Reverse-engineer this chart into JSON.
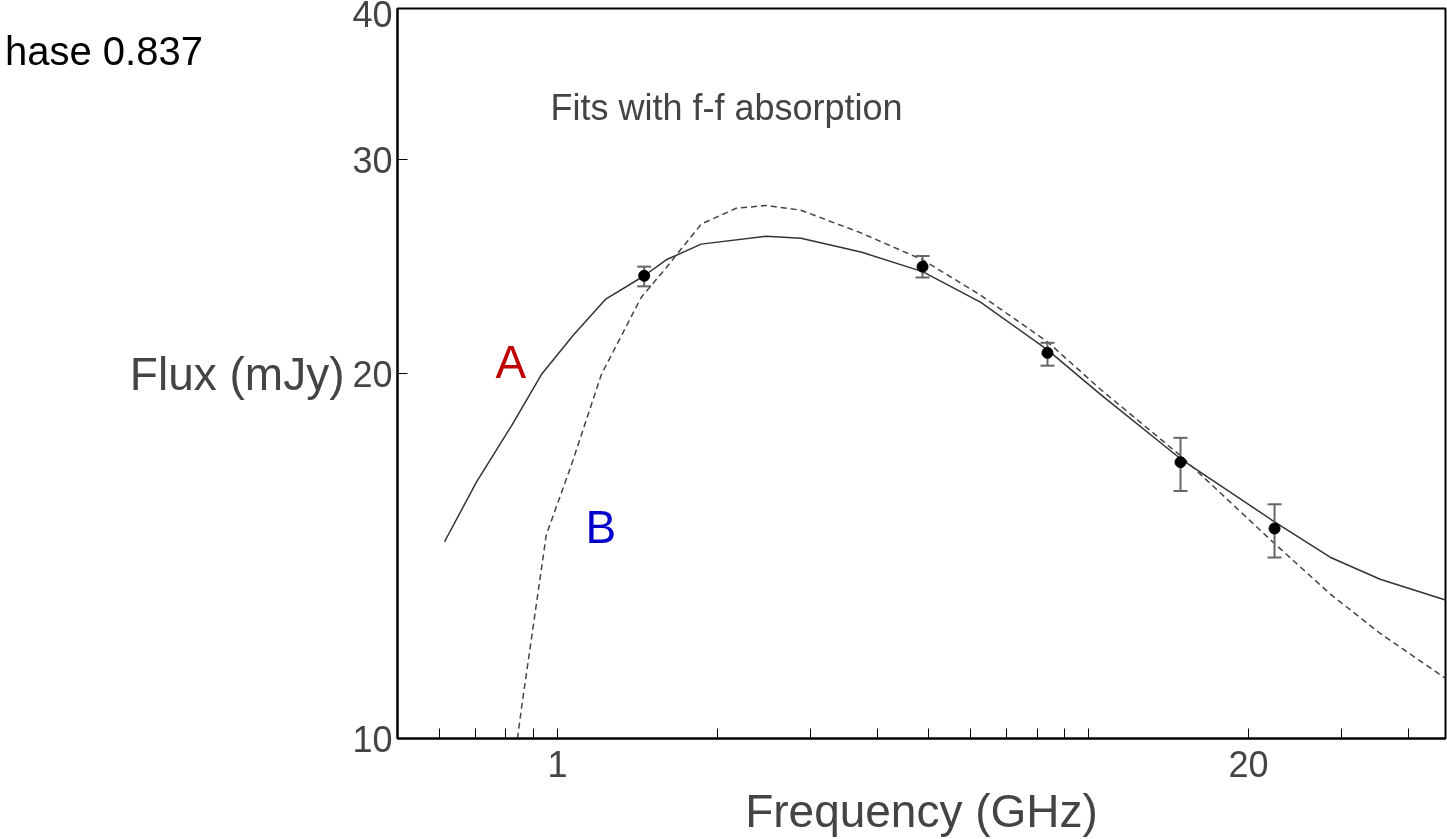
{
  "chart_data": {
    "type": "line",
    "title": "hase 0.837",
    "xlabel": "Frequency (GHz)",
    "ylabel": "Flux (mJy)",
    "annotations": [
      "Fits with f-f absorption"
    ],
    "log": "xy",
    "xlim": [
      0.5,
      47
    ],
    "ylim": [
      10,
      40
    ],
    "xticks": [
      {
        "value": 0.6,
        "label": null
      },
      {
        "value": 0.7,
        "label": null
      },
      {
        "value": 0.8,
        "label": null
      },
      {
        "value": 0.9,
        "label": null
      },
      {
        "value": 1,
        "label": "1"
      },
      {
        "value": 2,
        "label": null
      },
      {
        "value": 3,
        "label": null
      },
      {
        "value": 4,
        "label": null
      },
      {
        "value": 5,
        "label": null
      },
      {
        "value": 6,
        "label": null
      },
      {
        "value": 7,
        "label": null
      },
      {
        "value": 8,
        "label": null
      },
      {
        "value": 9,
        "label": null
      },
      {
        "value": 10,
        "label": null
      },
      {
        "value": 20,
        "label": "20"
      },
      {
        "value": 30,
        "label": null
      },
      {
        "value": 40,
        "label": null
      }
    ],
    "yticks": [
      10,
      20,
      30,
      40
    ],
    "grid": false,
    "legend": false,
    "series": [
      {
        "name": "A",
        "type": "line",
        "color": "#333333",
        "line_style": "solid",
        "x": [
          0.613,
          0.704,
          0.819,
          0.933,
          1.072,
          1.231,
          1.457,
          1.603,
          1.865,
          2.471,
          2.875,
          3.728,
          4.87,
          6.27,
          8.37,
          10.53,
          14.9,
          22.4,
          28.5,
          35.4,
          47
        ],
        "values": [
          14.53,
          16.27,
          18.1,
          19.96,
          21.52,
          23.02,
          24.08,
          24.82,
          25.57,
          25.96,
          25.86,
          25.19,
          24.27,
          22.89,
          20.92,
          19.22,
          17.01,
          15.09,
          14.11,
          13.53,
          13.01
        ]
      },
      {
        "name": "B",
        "type": "line",
        "color": "#444444",
        "line_style": "dashed",
        "x": [
          0.841,
          0.856,
          0.953,
          1.062,
          1.21,
          1.438,
          1.603,
          1.865,
          2.171,
          2.471,
          2.875,
          3.728,
          4.87,
          6.27,
          8.37,
          10.53,
          14.9,
          22.4,
          28.5,
          35.4,
          47
        ],
        "values": [
          10,
          10.6,
          14.72,
          16.8,
          19.96,
          23.11,
          24.45,
          26.56,
          27.37,
          27.52,
          27.27,
          26.12,
          24.82,
          23.2,
          21.24,
          19.41,
          17.11,
          14.48,
          13.16,
          12.21,
          11.21
        ]
      },
      {
        "type": "scatter",
        "color": "#000000",
        "marker": "circle",
        "x": [
          1.457,
          4.87,
          8.37,
          14.9,
          22.4
        ],
        "values": [
          24.08,
          24.5,
          20.8,
          16.9,
          14.9
        ],
        "errors": [
          [
            23.6,
            24.5
          ],
          [
            24.0,
            25.0
          ],
          [
            20.3,
            21.2
          ],
          [
            16.0,
            17.7
          ],
          [
            14.1,
            15.6
          ]
        ]
      }
    ]
  }
}
